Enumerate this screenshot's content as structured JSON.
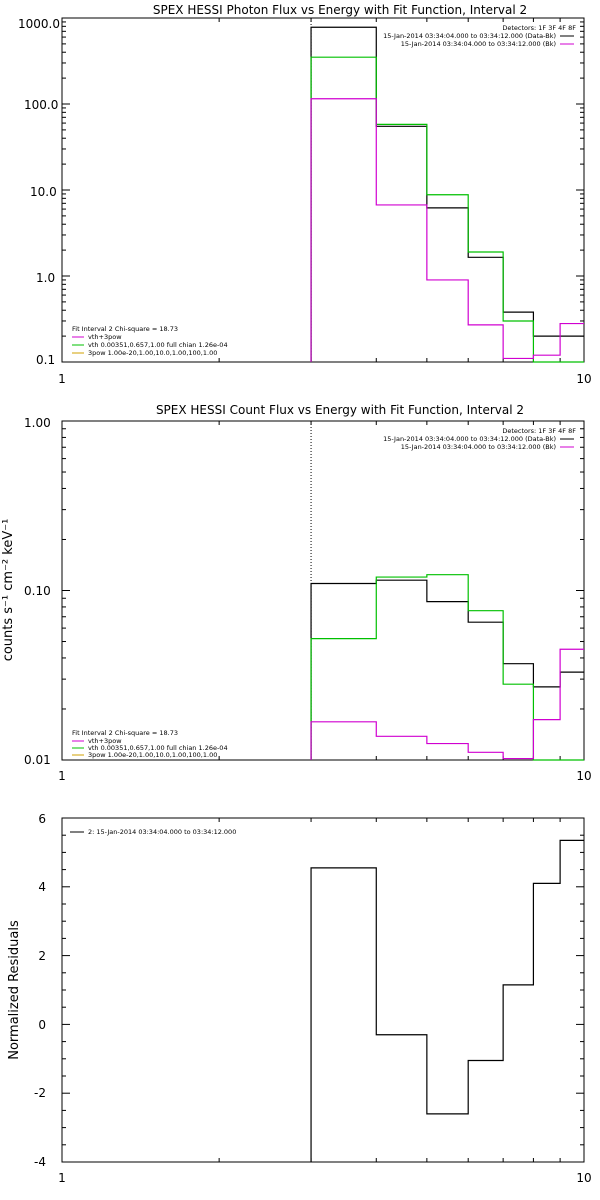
{
  "chart_data": [
    {
      "type": "line",
      "subtype": "histogram-step",
      "title": "SPEX HESSI Photon Flux vs Energy with Fit Function, Interval 2",
      "xlabel": "",
      "ylabel": "",
      "xscale": "log",
      "yscale": "log",
      "xlim": [
        1,
        10
      ],
      "ylim": [
        0.1,
        1000
      ],
      "xtick_labels": [
        "1",
        "10"
      ],
      "ytick_labels": [
        "0.1",
        "1.0",
        "10.0",
        "100.0",
        "1000.0"
      ],
      "legend_top_right": [
        "Detectors: 1F 3F 4F 8F",
        "15-Jan-2014 03:34:04.000 to 03:34:12.000 (Data-Bk)",
        "15-Jan-2014 03:34:04.000 to 03:34:12.000 (Bk)"
      ],
      "legend_bottom_left": [
        "Fit Interval 2   Chi-square = 18.73",
        "vth+3pow",
        "vth 0.00351,0.657,1.00  full chian 1.26e-04",
        "3pow 1.00e-20,1.00,10.0,1.00,100,1.00"
      ],
      "colors": {
        "data": "#000000",
        "model": "#00c000",
        "background": "#d000d0",
        "legend_line3": "#d0a000"
      },
      "threshold_line_x": 3,
      "series": [
        {
          "name": "15-Jan-2014 03:34:04.000 to 03:34:12.000 (Data-Bk)",
          "color": "#000000",
          "edges": [
            3,
            4,
            5,
            6,
            7,
            8,
            9,
            10
          ],
          "values": [
            780,
            55,
            6.2,
            1.65,
            0.38,
            0.2,
            0.2
          ]
        },
        {
          "name": "",
          "color": "#00c000",
          "edges": [
            3,
            4,
            5,
            6,
            7,
            8,
            9,
            10
          ],
          "values": [
            350,
            58,
            8.8,
            1.9,
            0.3,
            0.1,
            0.1
          ]
        },
        {
          "name": "15-Jan-2014 03:34:04.000 to 03:34:12.000 (Bk)",
          "color": "#d000d0",
          "edges": [
            3,
            4,
            5,
            6,
            7,
            8,
            9,
            10
          ],
          "values": [
            115,
            6.7,
            0.9,
            0.27,
            0.11,
            0.12,
            0.28
          ]
        }
      ]
    },
    {
      "type": "line",
      "subtype": "histogram-step",
      "title": "SPEX HESSI Count Flux vs Energy with Fit Function, Interval 2",
      "xlabel": "",
      "ylabel": "counts s⁻¹ cm⁻² keV⁻¹",
      "xscale": "log",
      "yscale": "log",
      "xlim": [
        1,
        10
      ],
      "ylim": [
        0.01,
        1
      ],
      "xtick_labels": [
        "1",
        "10"
      ],
      "ytick_labels": [
        "0.01",
        "0.10",
        "1.00"
      ],
      "legend_top_right": [
        "Detectors: 1F 3F 4F 8F",
        "15-Jan-2014 03:34:04.000 to 03:34:12.000 (Data-Bk)",
        "15-Jan-2014 03:34:04.000 to 03:34:12.000 (Bk)"
      ],
      "legend_bottom_left": [
        "Fit Interval 2   Chi-square = 18.73",
        "vth+3pow",
        "vth 0.00351,0.657,1.00  full chian 1.26e-04",
        "3pow 1.00e-20,1.00,10.0,1.00,100,1.00"
      ],
      "colors": {
        "data": "#000000",
        "model": "#00c000",
        "background": "#d000d0",
        "legend_line3": "#d0a000"
      },
      "threshold_line_x": 3,
      "series": [
        {
          "name": "15-Jan-2014 03:34:04.000 to 03:34:12.000 (Data-Bk)",
          "color": "#000000",
          "edges": [
            3,
            4,
            5,
            6,
            7,
            8,
            9,
            10
          ],
          "values": [
            0.11,
            0.115,
            0.086,
            0.065,
            0.037,
            0.027,
            0.033
          ]
        },
        {
          "name": "",
          "color": "#00c000",
          "edges": [
            3,
            4,
            5,
            6,
            7,
            8,
            9,
            10
          ],
          "values": [
            0.052,
            0.12,
            0.124,
            0.076,
            0.028,
            0.01,
            0.01
          ]
        },
        {
          "name": "15-Jan-2014 03:34:04.000 to 03:34:12.000 (Bk)",
          "color": "#d000d0",
          "edges": [
            3,
            4,
            5,
            6,
            7,
            8,
            9,
            10
          ],
          "values": [
            0.0168,
            0.0138,
            0.0125,
            0.0111,
            0.0102,
            0.0173,
            0.045
          ]
        }
      ]
    },
    {
      "type": "line",
      "subtype": "histogram-step",
      "title": "",
      "xlabel": "",
      "ylabel": "Normalized Residuals",
      "xscale": "log",
      "yscale": "linear",
      "xlim": [
        1,
        10
      ],
      "ylim": [
        -4,
        6
      ],
      "xtick_labels": [
        "1",
        "10"
      ],
      "ytick_labels": [
        "-4",
        "-2",
        "0",
        "2",
        "4",
        "6"
      ],
      "legend_top_left": [
        "2: 15-Jan-2014 03:34:04.000 to 03:34:12.000"
      ],
      "series": [
        {
          "name": "2: 15-Jan-2014 03:34:04.000 to 03:34:12.000",
          "color": "#000000",
          "edges": [
            3,
            4,
            5,
            6,
            7,
            8,
            9,
            10
          ],
          "values": [
            4.55,
            -0.3,
            -2.6,
            -1.05,
            1.15,
            4.1,
            5.35
          ]
        }
      ]
    }
  ]
}
